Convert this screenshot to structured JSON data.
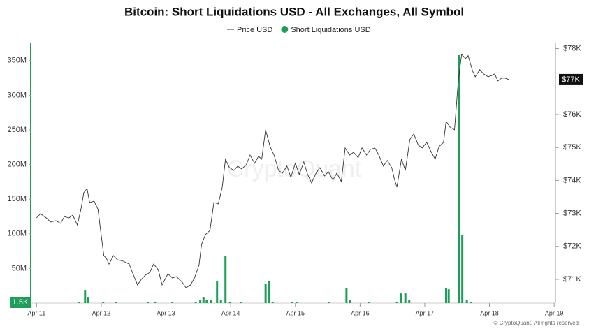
{
  "chart_data": {
    "type": "combo",
    "title": "Bitcoin: Short Liquidations USD - All Exchanges, All Symbol",
    "watermark": "CryptoQuant",
    "footer": "© CryptoQuant. All rights reserved",
    "xlim": [
      -0.09,
      8.02
    ],
    "xticks": [
      {
        "value": 0,
        "label": "Apr 11"
      },
      {
        "value": 1,
        "label": "Apr 12"
      },
      {
        "value": 2,
        "label": "Apr 13"
      },
      {
        "value": 3,
        "label": "Apr 14"
      },
      {
        "value": 4,
        "label": "Apr 15"
      },
      {
        "value": 5,
        "label": "Apr 16"
      },
      {
        "value": 6,
        "label": "Apr 17"
      },
      {
        "value": 7,
        "label": "Apr 18"
      },
      {
        "value": 8,
        "label": "Apr 19"
      }
    ],
    "ylim": [
      0,
      375000000
    ],
    "yticks": [
      {
        "value": 50000000,
        "label": "50M"
      },
      {
        "value": 100000000,
        "label": "100M"
      },
      {
        "value": 150000000,
        "label": "150M"
      },
      {
        "value": 200000000,
        "label": "200M"
      },
      {
        "value": 250000000,
        "label": "250M"
      },
      {
        "value": 300000000,
        "label": "300M"
      },
      {
        "value": 350000000,
        "label": "350M"
      }
    ],
    "y2lim": [
      70280,
      78160
    ],
    "y2ticks": [
      {
        "value": 71000,
        "label": "$71K"
      },
      {
        "value": 72000,
        "label": "$72K"
      },
      {
        "value": 73000,
        "label": "$73K"
      },
      {
        "value": 74000,
        "label": "$74K"
      },
      {
        "value": 75000,
        "label": "$75K"
      },
      {
        "value": 76000,
        "label": "$76K"
      },
      {
        "value": 78000,
        "label": "$78K"
      }
    ],
    "current_price_label": "$77K",
    "current_liquidation_label": "1.5K",
    "grid": false,
    "series": [
      {
        "name": "Price USD",
        "type": "line",
        "axis": "y2",
        "color": "#333333",
        "x": [
          0,
          0.06,
          0.15,
          0.22,
          0.3,
          0.37,
          0.43,
          0.5,
          0.56,
          0.63,
          0.69,
          0.73,
          0.78,
          0.82,
          0.89,
          0.95,
          0.99,
          1.04,
          1.08,
          1.12,
          1.19,
          1.25,
          1.34,
          1.43,
          1.49,
          1.56,
          1.62,
          1.68,
          1.75,
          1.81,
          1.88,
          1.94,
          2.03,
          2.1,
          2.16,
          2.25,
          2.31,
          2.38,
          2.44,
          2.51,
          2.55,
          2.61,
          2.68,
          2.74,
          2.81,
          2.87,
          2.92,
          2.98,
          3.05,
          3.11,
          3.17,
          3.24,
          3.3,
          3.37,
          3.43,
          3.48,
          3.54,
          3.61,
          3.67,
          3.74,
          3.8,
          3.87,
          3.93,
          4.0,
          4.06,
          4.13,
          4.19,
          4.25,
          4.32,
          4.38,
          4.45,
          4.51,
          4.58,
          4.64,
          4.71,
          4.77,
          4.84,
          4.9,
          4.97,
          5.03,
          5.1,
          5.16,
          5.23,
          5.29,
          5.36,
          5.42,
          5.49,
          5.53,
          5.57,
          5.64,
          5.7,
          5.77,
          5.83,
          5.9,
          5.96,
          6.03,
          6.09,
          6.16,
          6.22,
          6.29,
          6.33,
          6.39,
          6.46,
          6.52,
          6.57,
          6.63,
          6.67,
          6.74,
          6.78,
          6.85,
          6.91,
          6.98,
          7.04,
          7.08,
          7.13,
          7.19,
          7.24,
          7.3
        ],
        "values": [
          72865,
          72990,
          72865,
          72740,
          72780,
          72700,
          72905,
          72865,
          72950,
          72650,
          73160,
          73630,
          73755,
          73330,
          73370,
          73120,
          72480,
          71720,
          71635,
          71465,
          71720,
          71595,
          71550,
          71465,
          71170,
          70830,
          71000,
          71125,
          71210,
          71465,
          71295,
          70830,
          71170,
          71040,
          71085,
          70915,
          70745,
          70830,
          71040,
          71425,
          72060,
          72355,
          72485,
          73330,
          73290,
          73795,
          74645,
          74390,
          74305,
          74435,
          74350,
          74475,
          74770,
          74520,
          74735,
          74645,
          75535,
          75025,
          74770,
          74305,
          74220,
          74435,
          74095,
          74520,
          74180,
          74560,
          74180,
          73925,
          74220,
          74390,
          74135,
          74265,
          74010,
          74220,
          73965,
          74985,
          74770,
          74855,
          74690,
          74985,
          74770,
          74940,
          74985,
          74770,
          74435,
          74605,
          74390,
          74050,
          73795,
          74645,
          74305,
          75240,
          75410,
          75070,
          74985,
          75155,
          74900,
          74645,
          75025,
          75155,
          75790,
          75620,
          75535,
          77060,
          77825,
          77700,
          77785,
          77315,
          77145,
          77360,
          77230,
          77145,
          77190,
          77230,
          77020,
          77105,
          77105,
          77060
        ]
      },
      {
        "name": "Short Liquidations USD",
        "type": "bar",
        "axis": "y",
        "color": "#1e9e5a",
        "x": [
          0.66,
          0.75,
          0.8,
          1.03,
          1.23,
          1.72,
          1.83,
          2.1,
          2.46,
          2.53,
          2.58,
          2.63,
          2.7,
          2.79,
          2.85,
          2.92,
          2.99,
          3.16,
          3.54,
          3.59,
          3.65,
          3.95,
          4.03,
          4.52,
          4.79,
          4.84,
          5.14,
          5.57,
          5.63,
          5.7,
          5.76,
          6.33,
          6.37,
          6.53,
          6.58,
          6.65,
          6.72,
          7.3
        ],
        "values": [
          2000000,
          18000000,
          8000000,
          2000000,
          1000000,
          1000000,
          1000000,
          1000000,
          2000000,
          5000000,
          8000000,
          4000000,
          5000000,
          32000000,
          4000000,
          68000000,
          2000000,
          2000000,
          28000000,
          32000000,
          2000000,
          2000000,
          1000000,
          1000000,
          22000000,
          4000000,
          1000000,
          1000000,
          14000000,
          14000000,
          4000000,
          22000000,
          20000000,
          358000000,
          98000000,
          4000000,
          2000000,
          1500
        ]
      }
    ]
  }
}
